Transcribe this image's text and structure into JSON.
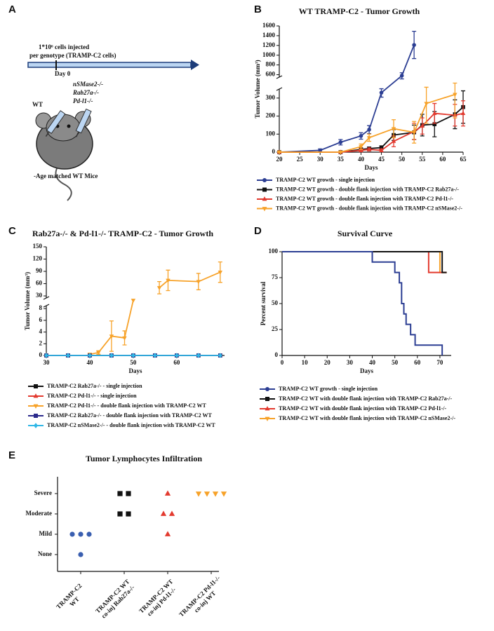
{
  "panel_labels": [
    "A",
    "B",
    "C",
    "D",
    "E"
  ],
  "diagram": {
    "injection": [
      "1*10⁶ cells injected",
      "per genotype (TRAMP-C2 cells)"
    ],
    "day": "Day 0",
    "genotypes": [
      "nSMase2-/-",
      "Rab27a-/-",
      "Pd-l1-/-"
    ],
    "control": "WT",
    "mice": "-Age matched WT Mice"
  },
  "chart_data": [
    {
      "type": "line",
      "title": "WT TRAMP-C2 - Tumor Growth",
      "xlabel": "Days",
      "ylabel": "Tumor Volume (mm³)",
      "xlim": [
        20,
        65
      ],
      "xticks": [
        20,
        25,
        30,
        35,
        40,
        45,
        50,
        55,
        60,
        65
      ],
      "ylim": [
        0,
        1600
      ],
      "y_break": [
        350,
        550
      ],
      "yticks": [
        0,
        100,
        200,
        300,
        600,
        800,
        1000,
        1200,
        1400,
        1600
      ],
      "series": [
        {
          "name": "TRAMP-C2 WT growth - single injection",
          "color": "#2c3e93",
          "marker": "circle",
          "x": [
            20,
            30,
            35,
            40,
            42,
            45,
            50,
            53
          ],
          "values": [
            0,
            10,
            55,
            90,
            125,
            330,
            580,
            1210
          ],
          "errors": [
            3,
            8,
            15,
            18,
            22,
            25,
            60,
            280
          ]
        },
        {
          "name": "TRAMP-C2 WT growth - double flank injection with TRAMP-C2 Rab27a-/-",
          "color": "#111111",
          "marker": "square",
          "x": [
            20,
            35,
            40,
            42,
            45,
            48,
            53,
            55,
            58,
            63,
            65
          ],
          "values": [
            0,
            0,
            15,
            20,
            25,
            95,
            110,
            150,
            155,
            210,
            250
          ],
          "errors": [
            1,
            1,
            8,
            8,
            10,
            30,
            40,
            60,
            70,
            80,
            90
          ]
        },
        {
          "name": "TRAMP-C2 WT growth - double flank injection with TRAMP-C2 Pd-l1-/-",
          "color": "#e33a2f",
          "marker": "triangle",
          "x": [
            20,
            35,
            40,
            42,
            45,
            48,
            53,
            55,
            58,
            63,
            65
          ],
          "values": [
            0,
            0,
            10,
            15,
            10,
            60,
            115,
            145,
            215,
            205,
            215
          ],
          "errors": [
            1,
            1,
            8,
            8,
            8,
            30,
            45,
            45,
            55,
            60,
            70
          ]
        },
        {
          "name": "TRAMP-C2 WT growth - double flank injection with TRAMP-C2 nSMase2-/-",
          "color": "#f7a229",
          "marker": "triangle-down",
          "x": [
            20,
            35,
            40,
            42,
            48,
            53,
            56,
            63
          ],
          "values": [
            0,
            0,
            30,
            80,
            130,
            110,
            270,
            320
          ],
          "errors": [
            1,
            1,
            15,
            20,
            50,
            60,
            110,
            130
          ]
        }
      ]
    },
    {
      "type": "line",
      "title": "Rab27a-/- & Pd-l1-/- TRAMP-C2 - Tumor Growth",
      "xlabel": "Days",
      "ylabel": "Tumor Volume (mm³)",
      "xlim": [
        30,
        71
      ],
      "xticks": [
        30,
        40,
        50,
        60
      ],
      "ylim": [
        0,
        150
      ],
      "y_break": [
        8.5,
        25
      ],
      "yticks": [
        0,
        2,
        4,
        6,
        8,
        30,
        60,
        90,
        120,
        150
      ],
      "series": [
        {
          "name": "TRAMP-C2 Rab27a-/- - single injection",
          "color": "#111111",
          "marker": "square",
          "x": [
            30,
            35,
            40,
            45,
            50,
            55,
            60,
            65,
            70
          ],
          "values": [
            0,
            0,
            0,
            0,
            0,
            0,
            0,
            0,
            0
          ]
        },
        {
          "name": "TRAMP-C2 Pd-l1-/- - single injection",
          "color": "#e33a2f",
          "marker": "triangle",
          "x": [
            30,
            35,
            40,
            45,
            50,
            55,
            60,
            65,
            70
          ],
          "values": [
            0,
            0,
            0,
            0,
            0,
            0,
            0,
            0,
            0
          ]
        },
        {
          "name": "TRAMP-C2 Pd-l1-/- - double flank injection with TRAMP-C2 WT",
          "color": "#f7a229",
          "marker": "triangle-down",
          "x": [
            40,
            42,
            45,
            48,
            50,
            53,
            56,
            58,
            65,
            70
          ],
          "values": [
            0.2,
            0.5,
            3.3,
            3.0,
            20,
            null,
            50,
            68,
            65,
            88
          ],
          "errors": [
            0.2,
            0.3,
            2.6,
            1.2,
            null,
            null,
            15,
            25,
            20,
            25
          ]
        },
        {
          "name": "TRAMP-C2 Rab27a-/- - double flank injection with TRAMP-C2 WT",
          "color": "#2b2a8c",
          "marker": "square",
          "x": [
            30,
            35,
            40,
            45,
            50,
            55,
            60,
            65,
            70
          ],
          "values": [
            0,
            0,
            0,
            0,
            0,
            0,
            0,
            0,
            0
          ]
        },
        {
          "name": "TRAMP-C2 nSMase2-/- - double flank injection with TRAMP-C2 WT",
          "color": "#2fb7e6",
          "marker": "diamond",
          "x": [
            30,
            35,
            40,
            45,
            50,
            55,
            60,
            65,
            70
          ],
          "values": [
            0,
            0,
            0,
            0,
            0,
            0,
            0,
            0,
            0
          ]
        }
      ]
    },
    {
      "type": "step",
      "title": "Survival Curve",
      "xlabel": "Days",
      "ylabel": "Percent survival",
      "xlim": [
        0,
        75
      ],
      "xticks": [
        0,
        10,
        20,
        30,
        40,
        50,
        60,
        70
      ],
      "ylim": [
        0,
        100
      ],
      "yticks": [
        0,
        25,
        50,
        75,
        100
      ],
      "series": [
        {
          "name": "TRAMP-C2 WT growth - single injection",
          "color": "#2c3e93",
          "marker": "circle",
          "x": [
            0,
            40,
            50,
            52,
            53,
            54,
            55,
            57,
            59,
            71
          ],
          "values": [
            100,
            90,
            80,
            70,
            50,
            40,
            30,
            20,
            10,
            0
          ]
        },
        {
          "name": "TRAMP-C2 WT with double flank injection with TRAMP-C2 Rab27a-/-",
          "color": "#111111",
          "marker": "square",
          "x": [
            0,
            71,
            73
          ],
          "values": [
            100,
            80,
            80
          ]
        },
        {
          "name": "TRAMP-C2 WT with double flank injection with TRAMP-C2 Pd-l1-/-",
          "color": "#e33a2f",
          "marker": "triangle",
          "x": [
            0,
            65,
            73
          ],
          "values": [
            100,
            80,
            80
          ]
        },
        {
          "name": "TRAMP-C2 WT with double flank injection with TRAMP-C2 nSMase2-/-",
          "color": "#f7a229",
          "marker": "triangle-down",
          "x": [
            0,
            70,
            73
          ],
          "values": [
            100,
            80,
            80
          ]
        }
      ]
    },
    {
      "type": "dot",
      "title": "Tumor Lymphocytes Infiltration",
      "ycategories": [
        "None",
        "Mild",
        "Moderate",
        "Severe"
      ],
      "categories": [
        [
          "TRAMP-C2",
          "WT"
        ],
        [
          "TRAMP-C2 WT",
          "co-inj Rab27a-/-"
        ],
        [
          "TRAMP-C2 WT",
          "co-inj Pd-l1-/-"
        ],
        [
          "TRAMP-C2 Pd-l1-/-",
          "co-inj WT"
        ]
      ],
      "series": [
        {
          "color": "#3a5fb0",
          "marker": "circle",
          "values": [
            "Mild",
            "Mild",
            "Mild",
            "None"
          ]
        },
        {
          "color": "#111111",
          "marker": "square",
          "values": [
            "Severe",
            "Severe",
            "Moderate",
            "Moderate"
          ]
        },
        {
          "color": "#e33a2f",
          "marker": "triangle",
          "values": [
            "Severe",
            "Moderate",
            "Moderate",
            "Mild"
          ]
        },
        {
          "color": "#f7a229",
          "marker": "triangle-down",
          "values": [
            "Severe",
            "Severe",
            "Severe",
            "Severe"
          ]
        }
      ]
    }
  ]
}
